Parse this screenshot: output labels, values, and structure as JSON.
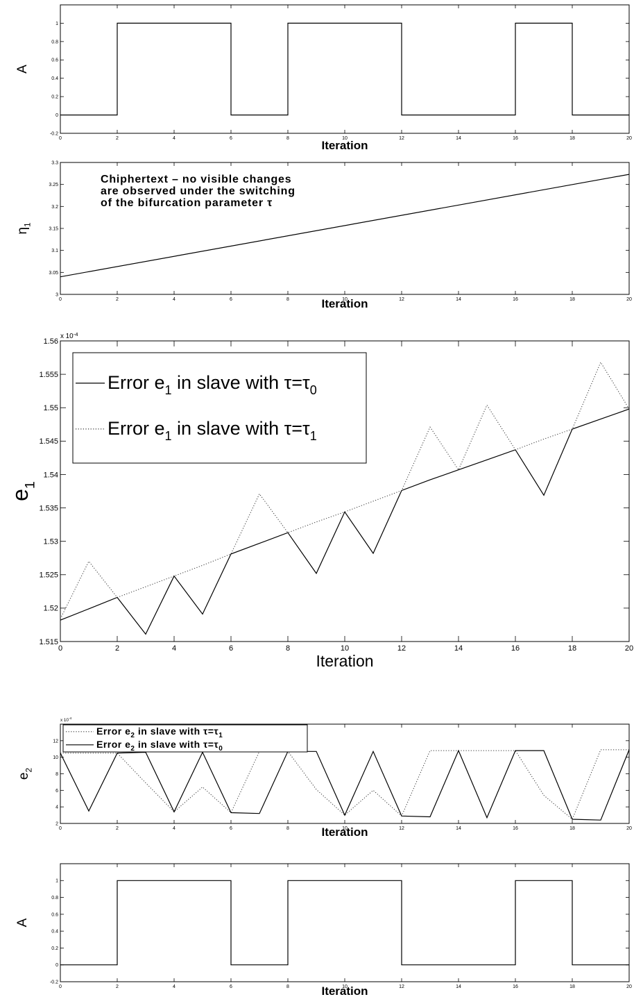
{
  "chart_data": [
    {
      "type": "line",
      "xlabel": "Iteration",
      "ylabel": "A",
      "xlim": [
        0,
        20
      ],
      "ylim": [
        -0.2,
        1.2
      ],
      "xticks": [
        "0",
        "2",
        "4",
        "6",
        "8",
        "10",
        "12",
        "14",
        "16",
        "18",
        "20"
      ],
      "yticks": [
        "-0.2",
        "0",
        "0.2",
        "0.4",
        "0.6",
        "0.8",
        "1"
      ],
      "series": [
        {
          "style": "solid",
          "step": true,
          "x": [
            0,
            2,
            6,
            8,
            12,
            16,
            18,
            20
          ],
          "y": [
            0,
            1,
            0,
            1,
            0,
            1,
            0,
            0
          ]
        }
      ]
    },
    {
      "type": "line",
      "xlabel": "Iteration",
      "ylabel": "η1",
      "ylabel_main": "η",
      "ylabel_sub": "1",
      "xlim": [
        0,
        20
      ],
      "ylim": [
        3,
        3.3
      ],
      "xticks": [
        "0",
        "2",
        "4",
        "6",
        "8",
        "10",
        "12",
        "14",
        "16",
        "18",
        "20"
      ],
      "yticks": [
        "3",
        "3.05",
        "3.1",
        "3.15",
        "3.2",
        "3.25",
        "3.3"
      ],
      "annotation": [
        "Chiphertext – no visible changes",
        "are observed under the switching",
        "of the bifurcation parameter τ"
      ],
      "series": [
        {
          "style": "solid",
          "x": [
            0,
            20
          ],
          "y": [
            3.04,
            3.273
          ]
        }
      ]
    },
    {
      "type": "line",
      "xlabel": "Iteration",
      "ylabel": "e1",
      "ylabel_main": "e",
      "ylabel_sub": "1",
      "exponent": "x 10",
      "exponent_power": "-4",
      "xlim": [
        0,
        20
      ],
      "ylim": [
        1.515,
        1.56
      ],
      "xticks": [
        "0",
        "2",
        "4",
        "6",
        "8",
        "10",
        "12",
        "14",
        "16",
        "18",
        "20"
      ],
      "yticks": [
        "1.515",
        "1.52",
        "1.525",
        "1.53",
        "1.535",
        "1.54",
        "1.545",
        "1.55",
        "1.555",
        "1.56"
      ],
      "legend": [
        {
          "style": "solid",
          "pre": "Error e",
          "sub": "1",
          "mid": " in slave with τ=τ",
          "sub2": "0"
        },
        {
          "style": "dotted",
          "pre": "Error e",
          "sub": "1",
          "mid": " in slave with τ=τ",
          "sub2": "1"
        }
      ],
      "series": [
        {
          "name": "Error e1 in slave with τ=τ0",
          "style": "solid",
          "x": [
            0,
            1,
            2,
            3,
            4,
            5,
            6,
            7,
            8,
            9,
            10,
            11,
            12,
            13,
            14,
            15,
            16,
            17,
            18,
            19,
            20
          ],
          "y": [
            1.5182,
            1.5199,
            1.5216,
            1.5161,
            1.5248,
            1.5191,
            1.5281,
            1.5297,
            1.5313,
            1.5252,
            1.5344,
            1.5282,
            1.5376,
            1.5392,
            1.5407,
            1.5422,
            1.5437,
            1.5369,
            1.5468,
            1.5483,
            1.5498
          ]
        },
        {
          "name": "Error e1 in slave with τ=τ1",
          "style": "dotted",
          "x": [
            0,
            1,
            2,
            3,
            4,
            5,
            6,
            7,
            8,
            9,
            10,
            11,
            12,
            13,
            14,
            15,
            16,
            17,
            18,
            19,
            20
          ],
          "y": [
            1.5184,
            1.527,
            1.5216,
            1.5232,
            1.5248,
            1.5264,
            1.5281,
            1.5371,
            1.5313,
            1.5329,
            1.5344,
            1.536,
            1.5376,
            1.5471,
            1.5407,
            1.5504,
            1.5437,
            1.5453,
            1.5468,
            1.5568,
            1.5498
          ]
        }
      ]
    },
    {
      "type": "line",
      "xlabel": "Iteration",
      "ylabel": "e2",
      "ylabel_main": "e",
      "ylabel_sub": "2",
      "exponent": "x 10",
      "exponent_power": "-4",
      "xlim": [
        0,
        20
      ],
      "ylim": [
        2,
        14
      ],
      "xticks": [
        "0",
        "2",
        "4",
        "6",
        "8",
        "10",
        "12",
        "14",
        "16",
        "18",
        "20"
      ],
      "yticks": [
        "2",
        "4",
        "6",
        "8",
        "10",
        "12"
      ],
      "legend": [
        {
          "style": "dotted",
          "pre": "Error e",
          "sub": "2",
          "mid": " in slave with τ=τ",
          "sub2": "1"
        },
        {
          "style": "solid",
          "pre": "Error e",
          "sub": "2",
          "mid": " in slave with τ=τ",
          "sub2": "0"
        }
      ],
      "series": [
        {
          "name": "Error e2 in slave with τ=τ1",
          "style": "dotted",
          "x": [
            0,
            1,
            2,
            3,
            4,
            5,
            6,
            7,
            8,
            9,
            10,
            11,
            12,
            13,
            14,
            15,
            16,
            17,
            18,
            19,
            20
          ],
          "y": [
            10.5,
            10.5,
            10.5,
            6.9,
            3.4,
            6.4,
            3.3,
            10.7,
            10.7,
            6.1,
            3.0,
            6.0,
            2.9,
            10.8,
            10.8,
            10.8,
            10.8,
            5.4,
            2.5,
            10.9,
            10.9
          ]
        },
        {
          "name": "Error e2 in slave with τ=τ0",
          "style": "solid",
          "x": [
            0,
            1,
            2,
            3,
            4,
            5,
            6,
            7,
            8,
            9,
            10,
            11,
            12,
            13,
            14,
            15,
            16,
            17,
            18,
            19,
            20
          ],
          "y": [
            10.5,
            3.5,
            10.5,
            10.6,
            3.4,
            10.6,
            3.3,
            3.2,
            10.7,
            10.7,
            3.0,
            10.7,
            2.9,
            2.8,
            10.8,
            2.7,
            10.8,
            10.8,
            2.5,
            2.4,
            10.9
          ]
        }
      ]
    },
    {
      "type": "line",
      "xlabel": "Iteration",
      "ylabel": "A",
      "xlim": [
        0,
        20
      ],
      "ylim": [
        -0.2,
        1.2
      ],
      "xticks": [
        "0",
        "2",
        "4",
        "6",
        "8",
        "10",
        "12",
        "14",
        "16",
        "18",
        "20"
      ],
      "yticks": [
        "-0.2",
        "0",
        "0.2",
        "0.4",
        "0.6",
        "0.8",
        "1"
      ],
      "series": [
        {
          "style": "solid",
          "step": true,
          "x": [
            0,
            2,
            6,
            8,
            12,
            16,
            18,
            20
          ],
          "y": [
            0,
            1,
            0,
            1,
            0,
            1,
            0,
            0
          ]
        }
      ]
    }
  ]
}
